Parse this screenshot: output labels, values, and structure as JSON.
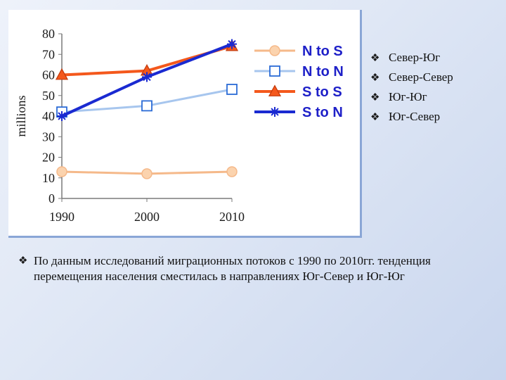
{
  "chart_data": {
    "type": "line",
    "title": "",
    "xlabel": "",
    "ylabel": "millions",
    "x": [
      "1990",
      "2000",
      "2010"
    ],
    "ylim": [
      0,
      80
    ],
    "yticks": [
      "0",
      "10",
      "20",
      "30",
      "40",
      "50",
      "60",
      "70",
      "80"
    ],
    "grid": false,
    "legend_position": "right",
    "series": [
      {
        "name": "N to S",
        "values": [
          13,
          12,
          13
        ],
        "color": "#f5b98a",
        "marker": "circle"
      },
      {
        "name": "N to N",
        "values": [
          42,
          45,
          53
        ],
        "color": "#a7c6ee",
        "marker": "square"
      },
      {
        "name": "S to S",
        "values": [
          60,
          62,
          74
        ],
        "color": "#f4581c",
        "marker": "triangle"
      },
      {
        "name": "S to N",
        "values": [
          40,
          59,
          75
        ],
        "color": "#1a2ad1",
        "marker": "asterisk"
      }
    ]
  },
  "bullets": [
    "Север-Юг",
    "Север-Север",
    "Юг-Юг",
    "Юг-Север"
  ],
  "bullet_glyph": "❖",
  "note": "По данным исследований миграционных потоков с 1990 по 2010гг. тенденция перемещения населения сместилась в направлениях Юг-Север и Юг-Юг",
  "colors": {
    "legend_text": "#1e20c8",
    "axis": "#7a7a7a",
    "tick_text": "#1a1a1a"
  }
}
